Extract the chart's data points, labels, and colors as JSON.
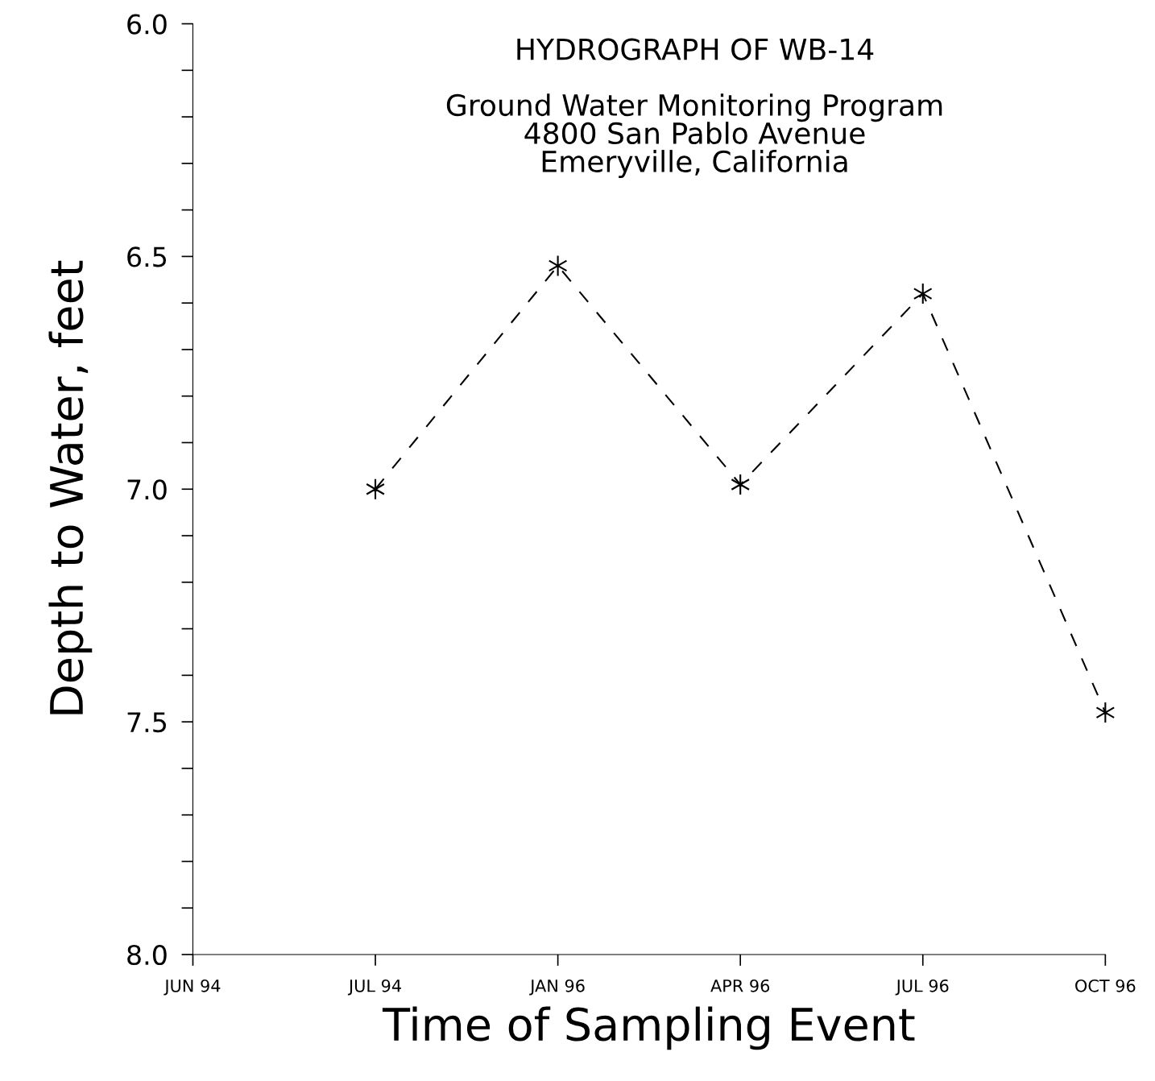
{
  "chart_data": {
    "type": "line",
    "title": "HYDROGRAPH OF WB-14",
    "subtitle": "Ground Water Monitoring Program\n4800 San Pablo Avenue\nEmeryville, California",
    "xlabel": "Time of Sampling Event",
    "ylabel": "Depth to Water, feet",
    "categories": [
      "JUN 94",
      "JUL 94",
      "JAN 96",
      "APR 96",
      "JUL 96",
      "OCT 96"
    ],
    "series": [
      {
        "color": "#000000",
        "values": [
          null,
          7.0,
          6.52,
          6.99,
          6.58,
          7.48
        ]
      }
    ],
    "ylim": [
      8.0,
      6.0
    ],
    "yticks": [
      {
        "value": 6.0,
        "label": "6.0"
      },
      {
        "value": 6.1,
        "label": null
      },
      {
        "value": 6.2,
        "label": null
      },
      {
        "value": 6.3,
        "label": null
      },
      {
        "value": 6.4,
        "label": null
      },
      {
        "value": 6.5,
        "label": "6.5"
      },
      {
        "value": 6.6,
        "label": null
      },
      {
        "value": 6.7,
        "label": null
      },
      {
        "value": 6.8,
        "label": null
      },
      {
        "value": 6.9,
        "label": null
      },
      {
        "value": 7.0,
        "label": "7.0"
      },
      {
        "value": 7.1,
        "label": null
      },
      {
        "value": 7.2,
        "label": null
      },
      {
        "value": 7.3,
        "label": null
      },
      {
        "value": 7.4,
        "label": null
      },
      {
        "value": 7.5,
        "label": "7.5"
      },
      {
        "value": 7.6,
        "label": null
      },
      {
        "value": 7.7,
        "label": null
      },
      {
        "value": 7.8,
        "label": null
      },
      {
        "value": 7.9,
        "label": null
      },
      {
        "value": 8.0,
        "label": "8.0"
      }
    ],
    "marker": "cross",
    "line_style": "dashed",
    "grid": false,
    "legend": false
  }
}
